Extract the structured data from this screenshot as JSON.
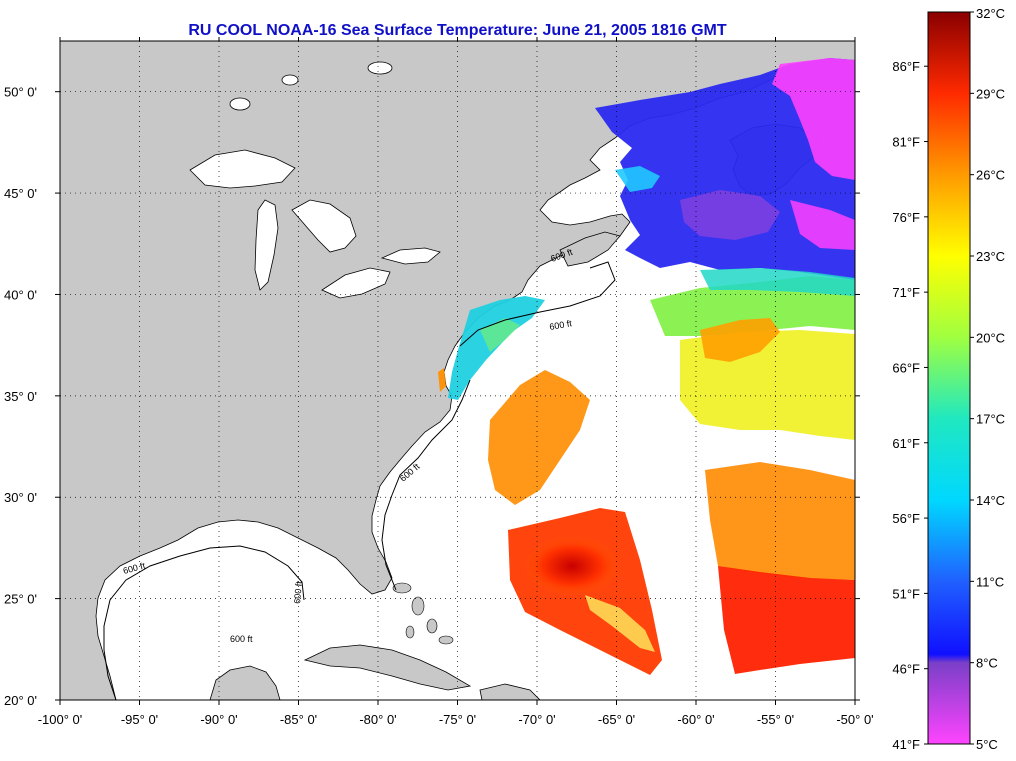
{
  "title": "RU COOL  NOAA-16  Sea Surface Temperature:  June 21, 2005 1816 GMT",
  "map": {
    "lon_range": [
      -100,
      -50
    ],
    "lat_range": [
      20,
      52.5
    ],
    "lon_ticks": [
      {
        "value": -100,
        "label": "-100° 0'"
      },
      {
        "value": -95,
        "label": "-95° 0'"
      },
      {
        "value": -90,
        "label": "-90° 0'"
      },
      {
        "value": -85,
        "label": "-85° 0'"
      },
      {
        "value": -80,
        "label": "-80° 0'"
      },
      {
        "value": -75,
        "label": "-75° 0'"
      },
      {
        "value": -70,
        "label": "-70° 0'"
      },
      {
        "value": -65,
        "label": "-65° 0'"
      },
      {
        "value": -60,
        "label": "-60° 0'"
      },
      {
        "value": -55,
        "label": "-55° 0'"
      },
      {
        "value": -50,
        "label": "-50° 0'"
      }
    ],
    "lat_ticks": [
      {
        "value": 20,
        "label": "20° 0'"
      },
      {
        "value": 25,
        "label": "25° 0'"
      },
      {
        "value": 30,
        "label": "30° 0'"
      },
      {
        "value": 35,
        "label": "35° 0'"
      },
      {
        "value": 40,
        "label": "40° 0'"
      },
      {
        "value": 45,
        "label": "45° 0'"
      },
      {
        "value": 50,
        "label": "50° 0'"
      }
    ],
    "contour_label": "600 ft",
    "land_color": "#c8c8c8",
    "ocean_color": "#ffffff"
  },
  "colorbar": {
    "min_c": 5,
    "max_c": 32,
    "celsius_ticks": [
      {
        "value": 32,
        "label": "32°C"
      },
      {
        "value": 29,
        "label": "29°C"
      },
      {
        "value": 26,
        "label": "26°C"
      },
      {
        "value": 23,
        "label": "23°C"
      },
      {
        "value": 20,
        "label": "20°C"
      },
      {
        "value": 17,
        "label": "17°C"
      },
      {
        "value": 14,
        "label": "14°C"
      },
      {
        "value": 11,
        "label": "11°C"
      },
      {
        "value": 8,
        "label": "8°C"
      },
      {
        "value": 5,
        "label": "5°C"
      }
    ],
    "fahrenheit_ticks": [
      {
        "value": 86,
        "label": "86°F"
      },
      {
        "value": 81,
        "label": "81°F"
      },
      {
        "value": 76,
        "label": "76°F"
      },
      {
        "value": 71,
        "label": "71°F"
      },
      {
        "value": 66,
        "label": "66°F"
      },
      {
        "value": 61,
        "label": "61°F"
      },
      {
        "value": 56,
        "label": "56°F"
      },
      {
        "value": 51,
        "label": "51°F"
      },
      {
        "value": 46,
        "label": "46°F"
      },
      {
        "value": 41,
        "label": "41°F"
      }
    ],
    "stops": [
      {
        "c": 5,
        "color": "#ff44ff"
      },
      {
        "c": 8,
        "color": "#7a3fc8"
      },
      {
        "c": 8.3,
        "color": "#1010ff"
      },
      {
        "c": 11,
        "color": "#2060ff"
      },
      {
        "c": 14,
        "color": "#00d8ff"
      },
      {
        "c": 17,
        "color": "#20e8c0"
      },
      {
        "c": 20,
        "color": "#a0ff40"
      },
      {
        "c": 23,
        "color": "#ffff00"
      },
      {
        "c": 26,
        "color": "#ff9a00"
      },
      {
        "c": 29,
        "color": "#ff2a00"
      },
      {
        "c": 32,
        "color": "#8a0000"
      }
    ]
  }
}
